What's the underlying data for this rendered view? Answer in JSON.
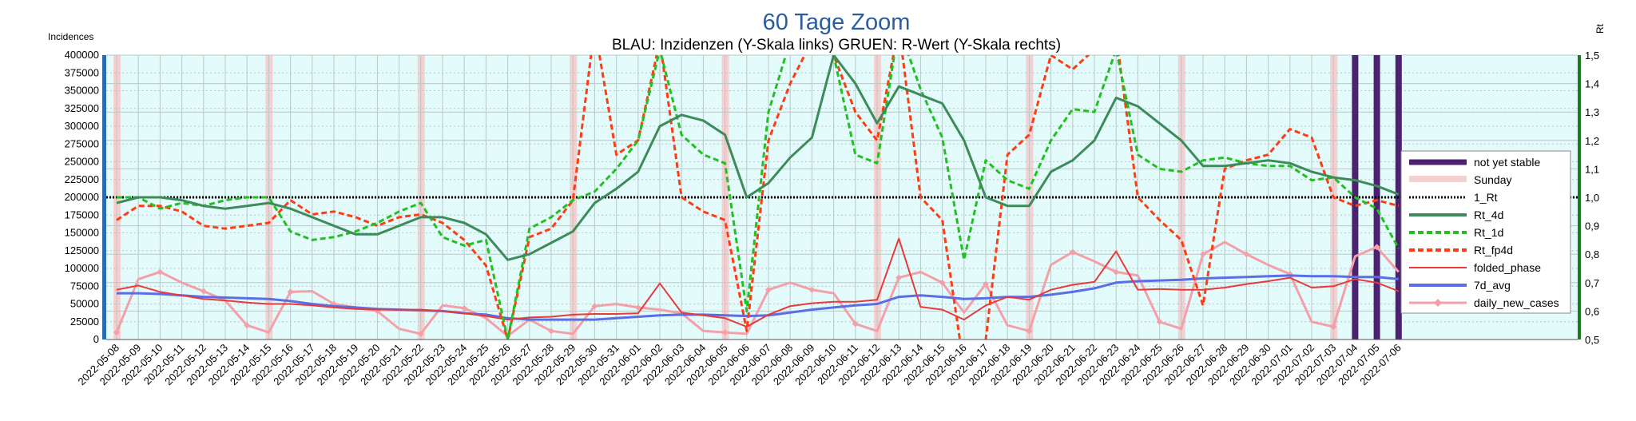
{
  "chart_data": {
    "type": "line",
    "title": "60 Tage Zoom",
    "subtitle": "BLAU: Inzidenzen (Y-Skala links)     GRUEN: R-Wert (Y-Skala rechts)",
    "ylabel_left": "Incidences",
    "ylabel_right": "Rt",
    "ylim_left": [
      0,
      400000
    ],
    "ylim_right": [
      0.5,
      1.5
    ],
    "yticks_left": [
      "0",
      "25000",
      "50000",
      "75000",
      "100000",
      "125000",
      "150000",
      "175000",
      "200000",
      "225000",
      "250000",
      "275000",
      "300000",
      "325000",
      "350000",
      "375000",
      "400000"
    ],
    "yticks_right": [
      "0,5",
      "0,6",
      "0,7",
      "0,8",
      "0,9",
      "1,0",
      "1,1",
      "1,2",
      "1,3",
      "1,4",
      "1,5"
    ],
    "x": [
      "2022-05-08",
      "2022-05-09",
      "2022-05-10",
      "2022-05-11",
      "2022-05-12",
      "2022-05-13",
      "2022-05-14",
      "2022-05-15",
      "2022-05-16",
      "2022-05-17",
      "2022-05-18",
      "2022-05-19",
      "2022-05-20",
      "2022-05-21",
      "2022-05-22",
      "2022-05-23",
      "2022-05-24",
      "2022-05-25",
      "2022-05-26",
      "2022-05-27",
      "2022-05-28",
      "2022-05-29",
      "2022-05-30",
      "2022-05-31",
      "2022-06-01",
      "2022-06-02",
      "2022-06-03",
      "2022-06-04",
      "2022-06-05",
      "2022-06-06",
      "2022-06-07",
      "2022-06-08",
      "2022-06-09",
      "2022-06-10",
      "2022-06-11",
      "2022-06-12",
      "2022-06-13",
      "2022-06-14",
      "2022-06-15",
      "2022-06-16",
      "2022-06-17",
      "2022-06-18",
      "2022-06-19",
      "2022-06-20",
      "2022-06-21",
      "2022-06-22",
      "2022-06-23",
      "2022-06-24",
      "2022-06-25",
      "2022-06-26",
      "2022-06-27",
      "2022-06-28",
      "2022-06-29",
      "2022-06-30",
      "2022-07-01",
      "2022-07-02",
      "2022-07-03",
      "2022-07-04",
      "2022-07-05",
      "2022-07-06"
    ],
    "sundays": [
      "2022-05-08",
      "2022-05-15",
      "2022-05-22",
      "2022-05-29",
      "2022-06-05",
      "2022-06-12",
      "2022-06-19",
      "2022-06-26",
      "2022-07-03"
    ],
    "not_yet_stable": [
      "2022-07-04",
      "2022-07-05",
      "2022-07-06"
    ],
    "grid": true,
    "legend_position": "right",
    "series": [
      {
        "name": "Rt_4d",
        "axis": "right",
        "color": "#3d8b5a",
        "style": "solid",
        "width": 3,
        "values": [
          0.98,
          1.0,
          1.0,
          0.99,
          0.97,
          0.96,
          0.97,
          0.98,
          0.96,
          0.93,
          0.9,
          0.87,
          0.87,
          0.9,
          0.93,
          0.93,
          0.91,
          0.87,
          0.78,
          0.8,
          0.84,
          0.88,
          0.98,
          1.03,
          1.09,
          1.25,
          1.29,
          1.27,
          1.22,
          1.0,
          1.05,
          1.14,
          1.21,
          1.5,
          1.4,
          1.26,
          1.39,
          1.36,
          1.33,
          1.2,
          1.0,
          0.97,
          0.97,
          1.09,
          1.13,
          1.2,
          1.35,
          1.32,
          1.26,
          1.2,
          1.11,
          1.11,
          1.12,
          1.13,
          1.12,
          1.09,
          1.07,
          1.06,
          1.04,
          1.01
        ]
      },
      {
        "name": "Rt_1d",
        "axis": "right",
        "color": "#22c022",
        "style": "dashed",
        "width": 3,
        "values": [
          1.0,
          1.0,
          0.96,
          0.98,
          0.97,
          0.99,
          1.0,
          1.0,
          0.88,
          0.85,
          0.86,
          0.88,
          0.91,
          0.95,
          0.98,
          0.86,
          0.83,
          0.85,
          0.5,
          0.89,
          0.93,
          0.99,
          1.02,
          1.1,
          1.2,
          1.52,
          1.22,
          1.15,
          1.12,
          0.6,
          1.3,
          1.55,
          1.55,
          1.5,
          1.15,
          1.12,
          1.6,
          1.38,
          1.21,
          0.78,
          1.13,
          1.06,
          1.03,
          1.2,
          1.31,
          1.3,
          1.52,
          1.15,
          1.1,
          1.09,
          1.13,
          1.14,
          1.12,
          1.11,
          1.11,
          1.06,
          1.07,
          1.0,
          0.96,
          0.82
        ]
      },
      {
        "name": "Rt_fp4d",
        "axis": "right",
        "color": "#ff3c14",
        "style": "dashed",
        "width": 3,
        "values": [
          0.92,
          0.97,
          0.97,
          0.95,
          0.9,
          0.89,
          0.9,
          0.91,
          0.99,
          0.94,
          0.95,
          0.93,
          0.9,
          0.93,
          0.94,
          0.91,
          0.85,
          0.76,
          0.5,
          0.86,
          0.89,
          0.99,
          1.6,
          1.15,
          1.2,
          1.55,
          1.0,
          0.95,
          0.92,
          0.53,
          1.2,
          1.4,
          1.55,
          1.5,
          1.3,
          1.2,
          1.6,
          1.0,
          0.92,
          0.4,
          0.5,
          1.15,
          1.22,
          1.5,
          1.45,
          1.52,
          1.57,
          1.0,
          0.92,
          0.85,
          0.62,
          1.1,
          1.13,
          1.15,
          1.24,
          1.21,
          1.0,
          0.97,
          0.99,
          0.97
        ]
      },
      {
        "name": "folded_phase",
        "axis": "left",
        "color": "#e83a3a",
        "style": "solid",
        "width": 2,
        "values": [
          70000,
          76000,
          67000,
          62000,
          57000,
          55000,
          52000,
          50000,
          50000,
          48000,
          45000,
          43000,
          42000,
          42000,
          42000,
          40000,
          37000,
          33000,
          28000,
          31000,
          32000,
          35000,
          36000,
          36000,
          37000,
          79000,
          38000,
          34000,
          30000,
          18000,
          35000,
          47000,
          51000,
          53000,
          53000,
          56000,
          142000,
          46000,
          42000,
          28000,
          48000,
          60000,
          56000,
          70000,
          77000,
          81000,
          124000,
          70000,
          71000,
          70000,
          70000,
          73000,
          78000,
          82000,
          87000,
          73000,
          75000,
          85000,
          80000,
          68000
        ]
      },
      {
        "name": "7d_avg",
        "axis": "left",
        "color": "#5a6ee6",
        "style": "solid",
        "width": 3,
        "values": [
          65000,
          65000,
          64000,
          62000,
          60000,
          59000,
          58000,
          57000,
          54000,
          50000,
          47000,
          45000,
          43000,
          42000,
          41000,
          40000,
          37000,
          35000,
          30000,
          28000,
          28000,
          28000,
          28000,
          30000,
          32000,
          34000,
          35000,
          35000,
          34000,
          33000,
          34000,
          38000,
          42000,
          45000,
          48000,
          50000,
          60000,
          62000,
          60000,
          57000,
          58000,
          60000,
          60000,
          63000,
          67000,
          72000,
          80000,
          82000,
          83000,
          84000,
          86000,
          87000,
          88000,
          89000,
          90000,
          89000,
          89000,
          88000,
          88000,
          85000
        ]
      },
      {
        "name": "daily_new_cases",
        "axis": "left",
        "color": "#f4a0a8",
        "style": "solid",
        "width": 3,
        "values": [
          10000,
          85000,
          95000,
          80000,
          68000,
          55000,
          20000,
          10000,
          67000,
          68000,
          50000,
          45000,
          40000,
          15000,
          8000,
          48000,
          44000,
          30000,
          5000,
          28000,
          12000,
          8000,
          47000,
          50000,
          45000,
          42000,
          37000,
          12000,
          10000,
          8000,
          70000,
          80000,
          70000,
          65000,
          22000,
          12000,
          87000,
          95000,
          80000,
          38000,
          78000,
          20000,
          12000,
          105000,
          123000,
          110000,
          95000,
          90000,
          25000,
          15000,
          120000,
          137000,
          120000,
          105000,
          92000,
          25000,
          18000,
          117000,
          130000,
          95000
        ]
      }
    ]
  },
  "legend": {
    "not_yet_stable": "not yet stable",
    "sunday": "Sunday",
    "one_rt": "1_Rt",
    "rt_4d": "Rt_4d",
    "rt_1d": "Rt_1d",
    "rt_fp4d": "Rt_fp4d",
    "folded_phase": "folded_phase",
    "avg7": "7d_avg",
    "daily": "daily_new_cases"
  },
  "colors": {
    "plot_background": "#e3fbfb",
    "sunday_band": "#f5d0d0",
    "not_yet_stable": "#4b2270",
    "left_axis": "#2b6cb0",
    "right_axis": "#1e7a1e",
    "grid": "#b9c8c8"
  }
}
